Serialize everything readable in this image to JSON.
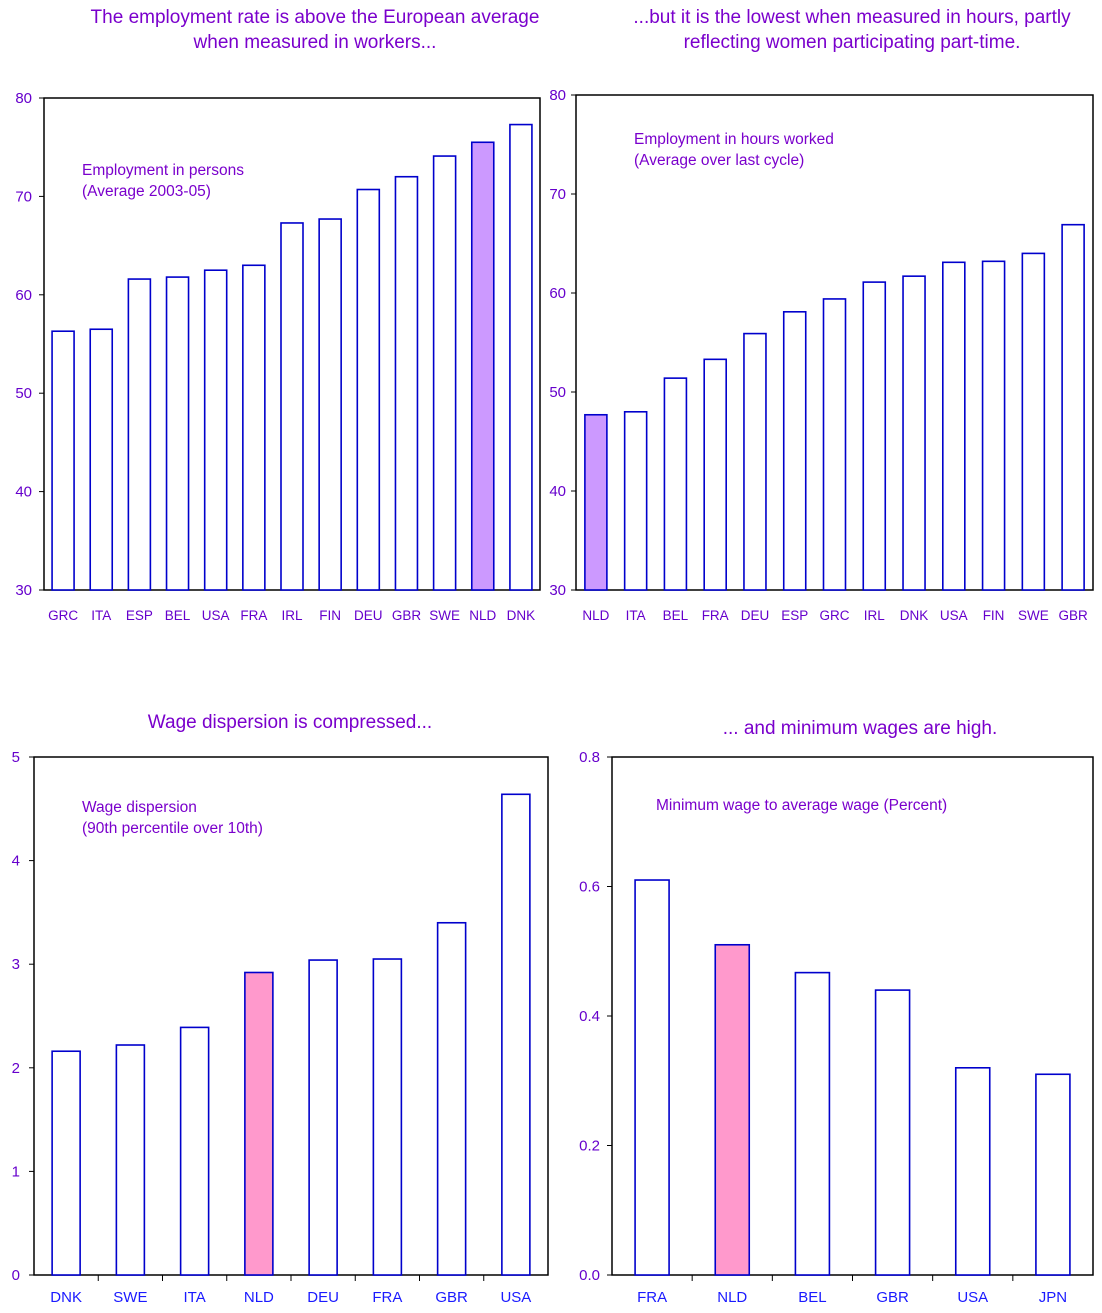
{
  "colors": {
    "title": "#7a00cc",
    "bar_outline": "#0000cc",
    "bar_fill": "#ffffff",
    "highlight_purple": "#cc99ff",
    "highlight_pink": "#ff99cc",
    "axis": "#000000"
  },
  "chart_data": [
    {
      "type": "bar",
      "title": "The employment rate is above the European average when measured in workers...",
      "annotation": [
        "Employment in persons",
        "(Average 2003-05)"
      ],
      "categories": [
        "GRC",
        "ITA",
        "ESP",
        "BEL",
        "USA",
        "FRA",
        "IRL",
        "FIN",
        "DEU",
        "GBR",
        "SWE",
        "NLD",
        "DNK"
      ],
      "values": [
        56.3,
        56.5,
        61.6,
        61.8,
        62.5,
        63.0,
        67.3,
        67.7,
        70.7,
        72.0,
        74.1,
        75.5,
        77.3
      ],
      "highlight": "NLD",
      "highlight_color": "#cc99ff",
      "ylim": [
        30,
        80
      ],
      "yticks": [
        "30",
        "40",
        "50",
        "60",
        "70",
        "80"
      ],
      "ytick_values": [
        30,
        40,
        50,
        60,
        70,
        80
      ],
      "xlabel": "",
      "ylabel": "",
      "grid": false
    },
    {
      "type": "bar",
      "title": "...but it is the lowest when measured in hours, partly reflecting women participating part-time.",
      "annotation": [
        "Employment in hours worked",
        "(Average over last cycle)"
      ],
      "categories": [
        "NLD",
        "ITA",
        "BEL",
        "FRA",
        "DEU",
        "ESP",
        "GRC",
        "IRL",
        "DNK",
        "USA",
        "FIN",
        "SWE",
        "GBR"
      ],
      "values": [
        47.7,
        48.0,
        51.4,
        53.3,
        55.9,
        58.1,
        59.4,
        61.1,
        61.7,
        63.1,
        63.2,
        64.0,
        66.9
      ],
      "highlight": "NLD",
      "highlight_color": "#cc99ff",
      "ylim": [
        30,
        80
      ],
      "yticks": [
        "30",
        "40",
        "50",
        "60",
        "70",
        "80"
      ],
      "ytick_values": [
        30,
        40,
        50,
        60,
        70,
        80
      ],
      "xlabel": "",
      "ylabel": "",
      "grid": false
    },
    {
      "type": "bar",
      "title": "Wage dispersion is compressed...",
      "annotation": [
        "Wage dispersion",
        "(90th percentile over 10th)"
      ],
      "categories": [
        "DNK",
        "SWE",
        "ITA",
        "NLD",
        "DEU",
        "FRA",
        "GBR",
        "USA"
      ],
      "values": [
        2.16,
        2.22,
        2.39,
        2.92,
        3.04,
        3.05,
        3.4,
        4.64
      ],
      "highlight": "NLD",
      "highlight_color": "#ff99cc",
      "ylim": [
        0,
        5
      ],
      "yticks": [
        "0",
        "1",
        "2",
        "3",
        "4",
        "5"
      ],
      "ytick_values": [
        0,
        1,
        2,
        3,
        4,
        5
      ],
      "xlabel": "",
      "ylabel": "",
      "grid": false
    },
    {
      "type": "bar",
      "title": "... and minimum wages are high.",
      "annotation": [
        "Minimum wage to average wage (Percent)"
      ],
      "categories": [
        "FRA",
        "NLD",
        "BEL",
        "GBR",
        "USA",
        "JPN"
      ],
      "values": [
        0.61,
        0.51,
        0.467,
        0.44,
        0.32,
        0.31
      ],
      "highlight": "NLD",
      "highlight_color": "#ff99cc",
      "ylim": [
        0,
        0.8
      ],
      "yticks": [
        "0.0",
        "0.2",
        "0.4",
        "0.6",
        "0.8"
      ],
      "ytick_values": [
        0,
        0.2,
        0.4,
        0.6,
        0.8
      ],
      "xlabel": "",
      "ylabel": "",
      "grid": false
    }
  ]
}
